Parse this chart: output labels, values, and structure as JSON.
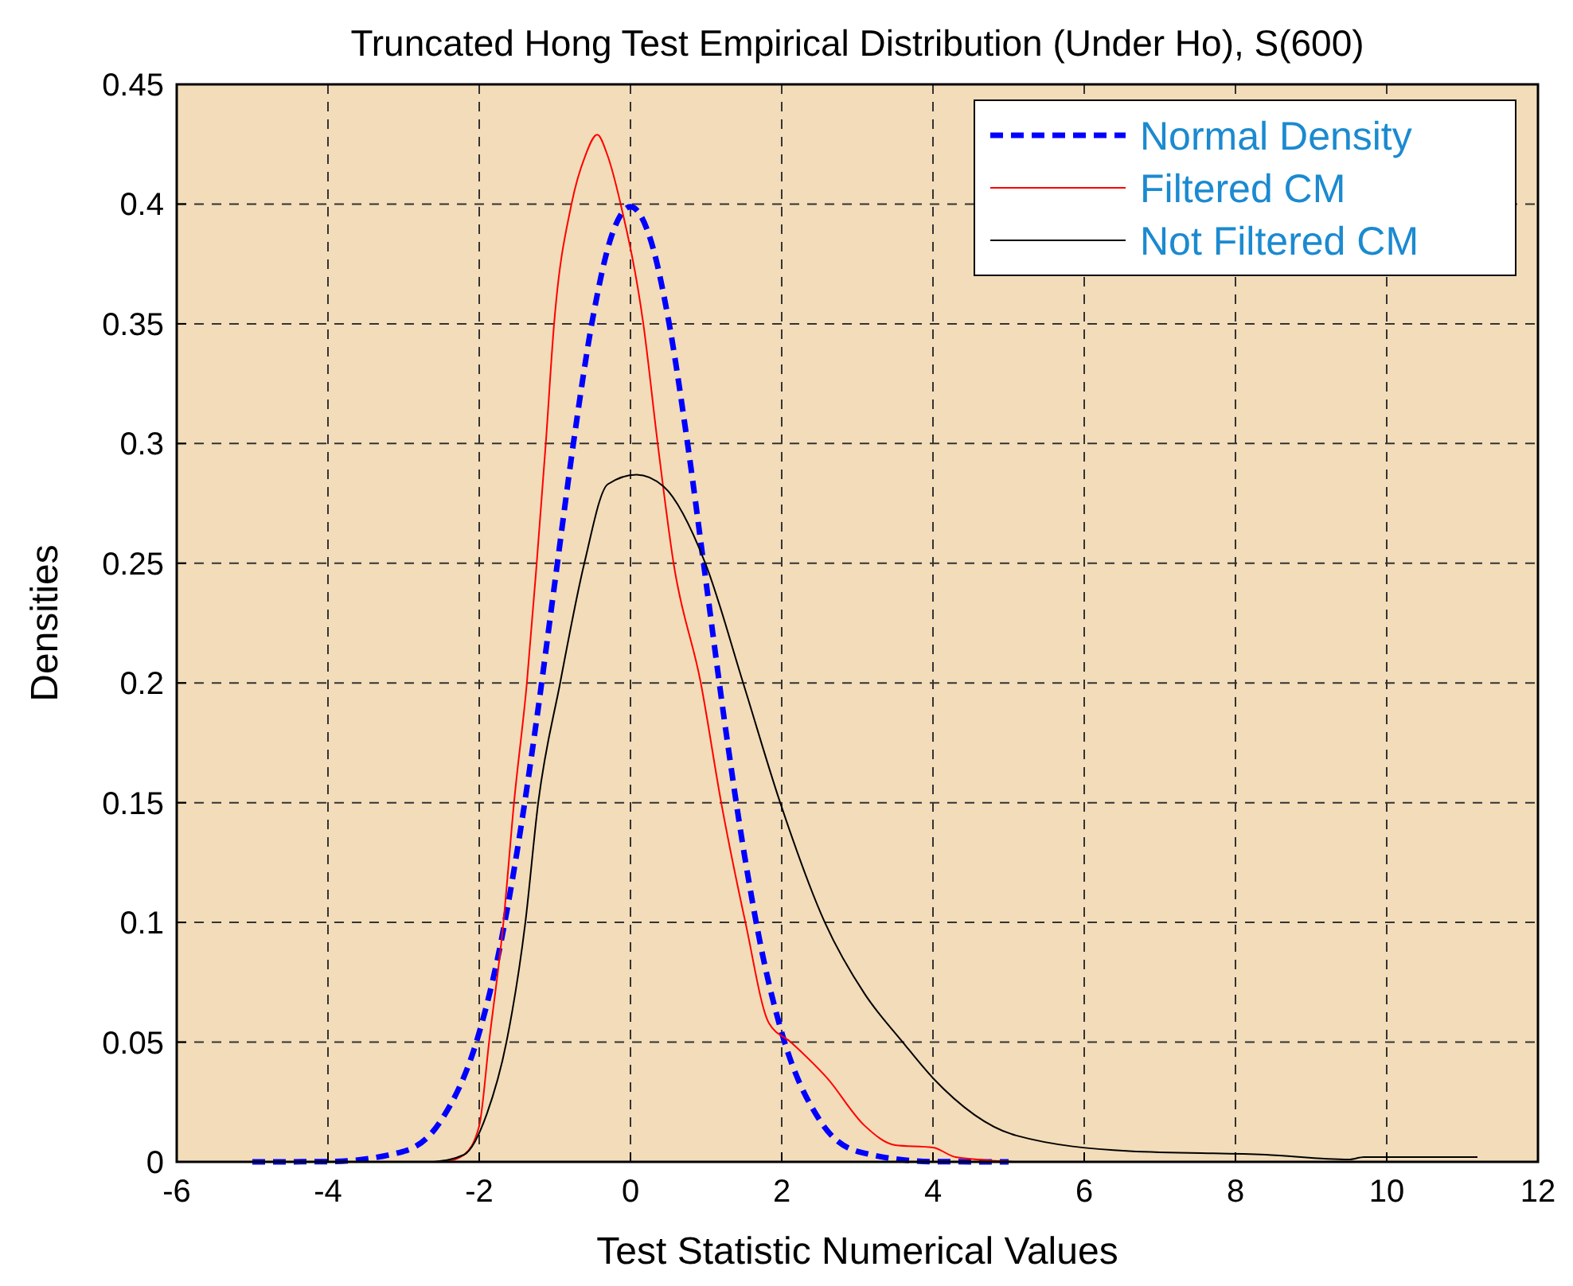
{
  "chart_data": {
    "type": "line",
    "title": "Truncated Hong Test Empirical Distribution (Under Ho), S(600)",
    "xlabel": "Test Statistic Numerical Values",
    "ylabel": "Densities",
    "xlim": [
      -6,
      12
    ],
    "xticks": [
      -6,
      -4,
      -2,
      0,
      2,
      4,
      6,
      8,
      10,
      12
    ],
    "ylim": [
      0,
      0.45
    ],
    "yticks": [
      0,
      0.05,
      0.1,
      0.15,
      0.2,
      0.25,
      0.3,
      0.35,
      0.4,
      0.45
    ],
    "grid": true,
    "legend": "top right",
    "marker": "none",
    "series": [
      {
        "name": "Normal Density",
        "color": "#0000ff",
        "line_style": "dashed",
        "x": [
          -5,
          -4,
          -3,
          -2.5,
          -2,
          -1.75,
          -1.5,
          -1.25,
          -1,
          -0.75,
          -0.5,
          -0.25,
          0,
          0.25,
          0.5,
          0.75,
          1,
          1.25,
          1.5,
          1.75,
          2,
          2.5,
          3,
          4,
          5
        ],
        "values": [
          0,
          0.0001,
          0.0044,
          0.0175,
          0.054,
          0.086,
          0.1295,
          0.1826,
          0.242,
          0.3011,
          0.3521,
          0.3867,
          0.3989,
          0.3867,
          0.3521,
          0.3011,
          0.242,
          0.1826,
          0.1295,
          0.086,
          0.054,
          0.0175,
          0.0044,
          0.0001,
          0
        ]
      },
      {
        "name": "Filtered CM",
        "color": "#ff0000",
        "line_style": "solid",
        "x": [
          -2.44,
          -2.2,
          -2.0,
          -1.87,
          -1.68,
          -1.54,
          -1.37,
          -1.24,
          -1.12,
          -1.01,
          -0.78,
          -0.6,
          -0.44,
          -0.3,
          -0.13,
          0.17,
          0.36,
          0.57,
          0.93,
          1.2,
          1.52,
          1.83,
          2.12,
          2.6,
          3.1,
          3.5,
          4.0,
          4.3,
          5.1
        ],
        "values": [
          0,
          0.003,
          0.015,
          0.05,
          0.1,
          0.15,
          0.2,
          0.25,
          0.3,
          0.35,
          0.4,
          0.42,
          0.429,
          0.42,
          0.4,
          0.35,
          0.3,
          0.25,
          0.2,
          0.15,
          0.1,
          0.058,
          0.05,
          0.035,
          0.015,
          0.007,
          0.006,
          0.002,
          0
        ]
      },
      {
        "name": "Not Filtered CM",
        "color": "#000000",
        "line_style": "solid",
        "x": [
          -2.6,
          -2.2,
          -1.9,
          -1.64,
          -1.39,
          -1.22,
          -0.93,
          -0.61,
          -0.3,
          0.08,
          0.44,
          0.99,
          1.49,
          1.98,
          2.57,
          3.1,
          3.6,
          4.0,
          5.1,
          6.6,
          8.4,
          9.5,
          9.7,
          11.2
        ],
        "values": [
          0,
          0.003,
          0.02,
          0.05,
          0.1,
          0.15,
          0.2,
          0.25,
          0.283,
          0.287,
          0.282,
          0.25,
          0.2,
          0.15,
          0.1,
          0.07,
          0.05,
          0.035,
          0.011,
          0.0045,
          0.003,
          0.001,
          0.002,
          0.002
        ]
      }
    ]
  }
}
